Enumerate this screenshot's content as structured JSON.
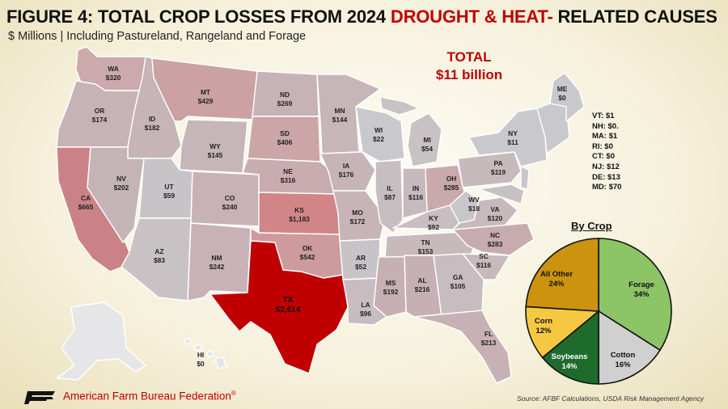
{
  "title": {
    "part1": "FIGURE 4: TOTAL CROP LOSSES FROM 2024 ",
    "highlight": "DROUGHT & HEAT-",
    "part2": " RELATED CAUSES"
  },
  "subtitle": "$ Millions | Including Pastureland, Rangeland and Forage",
  "total": {
    "line1": "TOTAL",
    "line2": "$11 billion"
  },
  "colors": {
    "accent_red": "#c00000",
    "scale_low": "#c9c9cd",
    "scale_high": "#c00000",
    "alaska": "#e6e6e9",
    "forage": "#8cc466",
    "cotton": "#d0d0d0",
    "soybeans": "#1f6b2e",
    "corn": "#f5c842",
    "all_other": "#cc9310"
  },
  "states": {
    "WA": {
      "code": "WA",
      "value": "$320"
    },
    "OR": {
      "code": "OR",
      "value": "$174"
    },
    "CA": {
      "code": "CA",
      "value": "$665"
    },
    "ID": {
      "code": "ID",
      "value": "$182"
    },
    "NV": {
      "code": "NV",
      "value": "$202"
    },
    "MT": {
      "code": "MT",
      "value": "$429"
    },
    "WY": {
      "code": "WY",
      "value": "$145"
    },
    "UT": {
      "code": "UT",
      "value": "$59"
    },
    "AZ": {
      "code": "AZ",
      "value": "$83"
    },
    "CO": {
      "code": "CO",
      "value": "$240"
    },
    "NM": {
      "code": "NM",
      "value": "$242"
    },
    "ND": {
      "code": "ND",
      "value": "$269"
    },
    "SD": {
      "code": "SD",
      "value": "$406"
    },
    "NE": {
      "code": "NE",
      "value": "$316"
    },
    "KS": {
      "code": "KS",
      "value": "$1,183"
    },
    "OK": {
      "code": "OK",
      "value": "$542"
    },
    "TX": {
      "code": "TX",
      "value": "$2,614"
    },
    "MN": {
      "code": "MN",
      "value": "$144"
    },
    "IA": {
      "code": "IA",
      "value": "$176"
    },
    "MO": {
      "code": "MO",
      "value": "$172"
    },
    "AR": {
      "code": "AR",
      "value": "$52"
    },
    "LA": {
      "code": "LA",
      "value": "$96"
    },
    "WI": {
      "code": "WI",
      "value": "$22"
    },
    "IL": {
      "code": "IL",
      "value": "$87"
    },
    "MS": {
      "code": "MS",
      "value": "$192"
    },
    "MI": {
      "code": "MI",
      "value": "$54"
    },
    "IN": {
      "code": "IN",
      "value": "$116"
    },
    "KY": {
      "code": "KY",
      "value": "$92"
    },
    "TN": {
      "code": "TN",
      "value": "$153"
    },
    "AL": {
      "code": "AL",
      "value": "$216"
    },
    "GA": {
      "code": "GA",
      "value": "$105"
    },
    "FL": {
      "code": "FL",
      "value": "$213"
    },
    "OH": {
      "code": "OH",
      "value": "$285"
    },
    "WV": {
      "code": "WV",
      "value": "$18"
    },
    "VA": {
      "code": "VA",
      "value": "$120"
    },
    "NC": {
      "code": "NC",
      "value": "$283"
    },
    "SC": {
      "code": "SC",
      "value": "$116"
    },
    "PA": {
      "code": "PA",
      "value": "$119"
    },
    "NY": {
      "code": "NY",
      "value": "$11"
    },
    "ME": {
      "code": "ME",
      "value": "$0"
    },
    "HI": {
      "code": "HI",
      "value": "$0"
    }
  },
  "small_states": [
    "VT: $1",
    "NH: $0.",
    "MA: $1",
    "RI: $0",
    "CT: $0",
    "NJ: $12",
    "DE: $13",
    "MD: $70"
  ],
  "pie": {
    "title": "By Crop",
    "slices": [
      {
        "label": "Forage",
        "pct": "34%",
        "value": 34
      },
      {
        "label": "Cotton",
        "pct": "16%",
        "value": 16
      },
      {
        "label": "Soybeans",
        "pct": "14%",
        "value": 14
      },
      {
        "label": "Corn",
        "pct": "12%",
        "value": 12
      },
      {
        "label": "All Other",
        "pct": "24%",
        "value": 24
      }
    ]
  },
  "footer": {
    "org": "American Farm Bureau Federation",
    "registered": "®",
    "source": "Source: AFBF Calculations, USDA Risk Management Agency"
  }
}
